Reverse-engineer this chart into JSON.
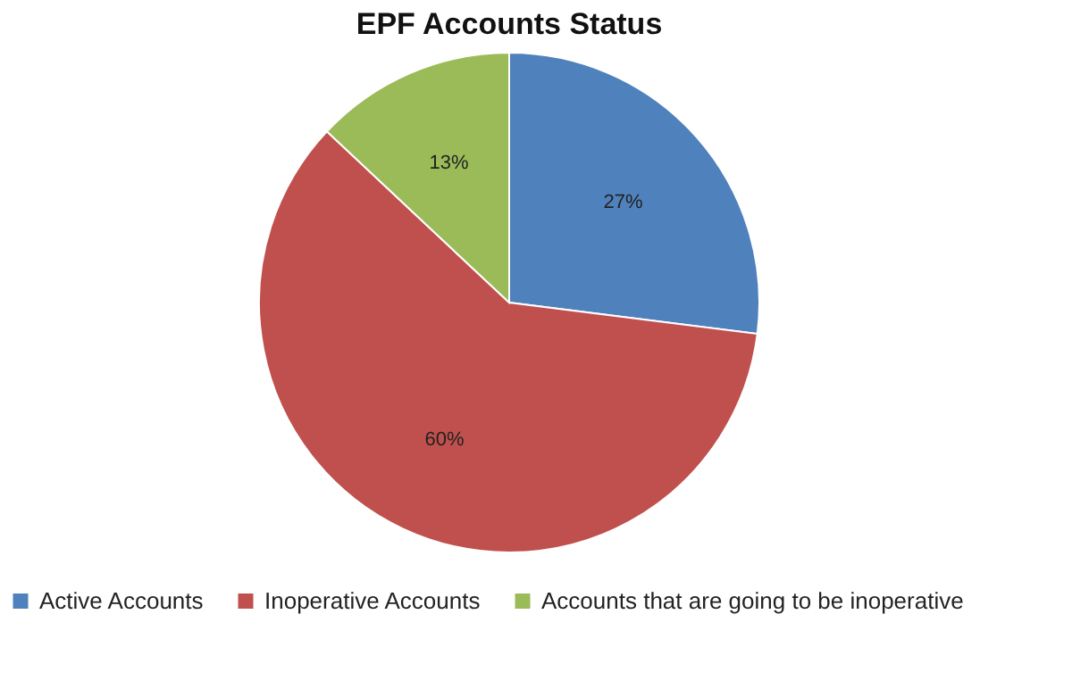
{
  "chart_data": {
    "type": "pie",
    "title": "EPF Accounts Status",
    "categories": [
      "Active Accounts",
      "Inoperative Accounts",
      "Accounts that are going to be inoperative"
    ],
    "values": [
      27,
      60,
      13
    ],
    "colors": [
      "#4f81bd",
      "#c0504d",
      "#9bbb59"
    ],
    "value_labels": [
      "27%",
      "60%",
      "13%"
    ],
    "legend": "bottom"
  }
}
